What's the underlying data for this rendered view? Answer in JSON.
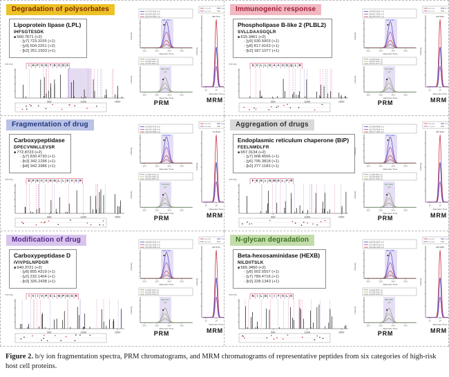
{
  "figure": {
    "caption_label": "Figure 2.",
    "caption_text": " b/y ion fragmentation spectra, PRM chromatograms, and MRM chromatograms of representative peptides from six categories of high-risk host cell proteins."
  },
  "shared": {
    "prm_label": "PRM",
    "mrm_label": "MRM",
    "x_axis_label": "Retention Time",
    "y_axis_label": "Intensity",
    "spectrum_x_ticks": [
      500,
      1000,
      1500
    ],
    "rt_ticks": [
      "13.0",
      "13.5",
      "14.0",
      "14.5"
    ],
    "mrm_rt_ticks": [
      "13",
      "14",
      "15"
    ]
  },
  "panels": [
    {
      "category": "Degradation of polysorbates",
      "category_bg": "#edc226",
      "category_fg": "#7d2a05",
      "protein": "Lipoprotein lipase (LPL)",
      "peptide": "IHFSGTESDK",
      "precursor": "560.7671 (+2)",
      "fragments": [
        "[y7] 723.3155 (+1)",
        "[y9] 504.2251 (+2)",
        "[b2] 251.1503 (+1)"
      ],
      "spectrum_band": true
    },
    {
      "category": "Immunogenic response",
      "category_bg": "#f2b8c2",
      "category_fg": "#9c1f35",
      "protein": "Phospholipase B-like 2 (PLBL2)",
      "peptide": "SVLLDAASGQLR",
      "precursor": "615.3461 (+2)",
      "fragments": [
        "[y9] 930.5003 (+1)",
        "[y8] 817.4163 (+1)",
        "[b2] 187.1077 (+1)"
      ],
      "spectrum_band": false
    },
    {
      "category": "Fragmentation of drug",
      "category_bg": "#b9c3e6",
      "category_fg": "#23377f",
      "protein": "Carboxypeptidase",
      "peptide": "DPECVNNLLEVSR",
      "precursor": "772.8723 (+2)",
      "fragments": [
        "[y7] 830.4730 (+1)",
        "[b3] 342.1296 (+1)",
        "[b8] 942.3986 (+1)"
      ],
      "spectrum_band": false
    },
    {
      "category": "Aggregation of drugs",
      "category_bg": "#d9d9d9",
      "category_fg": "#333333",
      "protein": "Endoplasmic reticulum chaperone (BiP)",
      "peptide": "FEELNMDLFR",
      "precursor": "657.3134 (+2)",
      "fragments": [
        "[y7] 908.4566 (+1)",
        "[y6] 795.3818 (+1)",
        "[b2] 277.1183 (+1)"
      ],
      "spectrum_band": false
    },
    {
      "category": "Modification of drug",
      "category_bg": "#d8c5ec",
      "category_fg": "#57258c",
      "protein": "Carboxypeptidase D",
      "peptide": "IVIVPSLNPDGR",
      "precursor": "640.3721 (+2)",
      "fragments": [
        "[y8] 855.4319 (+1)",
        "[y2] 232.1404 (+1)",
        "[b3] 326.2438 (+1)"
      ],
      "spectrum_band": false
    },
    {
      "category": "N-glycan degradation",
      "category_bg": "#c2dcaa",
      "category_fg": "#39701e",
      "protein": "Beta-hexosaminidase (HEXB)",
      "peptide": "NILDIITSLK",
      "precursor": "565.3450 (+2)",
      "fragments": [
        "[y8] 902.5557 (+1)",
        "[y7] 789.4716 (+1)",
        "[b2] 228.1343 (+1)"
      ],
      "spectrum_band": false
    }
  ]
}
